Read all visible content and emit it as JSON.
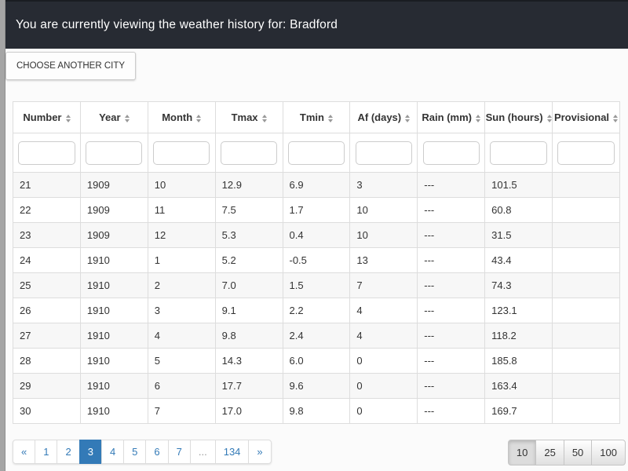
{
  "navbar": {
    "title": "You are currently viewing the weather history for: Bradford"
  },
  "toolbar": {
    "choose_city_label": "CHOOSE ANOTHER CITY"
  },
  "table": {
    "columns": [
      "Number",
      "Year",
      "Month",
      "Tmax",
      "Tmin",
      "Af (days)",
      "Rain (mm)",
      "Sun (hours)",
      "Provisional"
    ],
    "filters": [
      "",
      "",
      "",
      "",
      "",
      "",
      "",
      "",
      ""
    ],
    "rows": [
      [
        "21",
        "1909",
        "10",
        "12.9",
        "6.9",
        "3",
        "---",
        "101.5",
        ""
      ],
      [
        "22",
        "1909",
        "11",
        "7.5",
        "1.7",
        "10",
        "---",
        "60.8",
        ""
      ],
      [
        "23",
        "1909",
        "12",
        "5.3",
        "0.4",
        "10",
        "---",
        "31.5",
        ""
      ],
      [
        "24",
        "1910",
        "1",
        "5.2",
        "-0.5",
        "13",
        "---",
        "43.4",
        ""
      ],
      [
        "25",
        "1910",
        "2",
        "7.0",
        "1.5",
        "7",
        "---",
        "74.3",
        ""
      ],
      [
        "26",
        "1910",
        "3",
        "9.1",
        "2.2",
        "4",
        "---",
        "123.1",
        ""
      ],
      [
        "27",
        "1910",
        "4",
        "9.8",
        "2.4",
        "4",
        "---",
        "118.2",
        ""
      ],
      [
        "28",
        "1910",
        "5",
        "14.3",
        "6.0",
        "0",
        "---",
        "185.8",
        ""
      ],
      [
        "29",
        "1910",
        "6",
        "17.7",
        "9.6",
        "0",
        "---",
        "163.4",
        ""
      ],
      [
        "30",
        "1910",
        "7",
        "17.0",
        "9.8",
        "0",
        "---",
        "169.7",
        ""
      ]
    ]
  },
  "pagination": {
    "items": [
      {
        "label": "«",
        "active": false,
        "disabled": false
      },
      {
        "label": "1",
        "active": false,
        "disabled": false
      },
      {
        "label": "2",
        "active": false,
        "disabled": false
      },
      {
        "label": "3",
        "active": true,
        "disabled": false
      },
      {
        "label": "4",
        "active": false,
        "disabled": false
      },
      {
        "label": "5",
        "active": false,
        "disabled": false
      },
      {
        "label": "6",
        "active": false,
        "disabled": false
      },
      {
        "label": "7",
        "active": false,
        "disabled": false
      },
      {
        "label": "...",
        "active": false,
        "disabled": true
      },
      {
        "label": "134",
        "active": false,
        "disabled": false
      },
      {
        "label": "»",
        "active": false,
        "disabled": false
      }
    ]
  },
  "page_size": {
    "options": [
      {
        "label": "10",
        "active": true
      },
      {
        "label": "25",
        "active": false
      },
      {
        "label": "50",
        "active": false
      },
      {
        "label": "100",
        "active": false
      }
    ]
  },
  "colors": {
    "accent": "#337ab7",
    "navbar_bg": "#272b33",
    "stripe": "#f7f7f7"
  }
}
